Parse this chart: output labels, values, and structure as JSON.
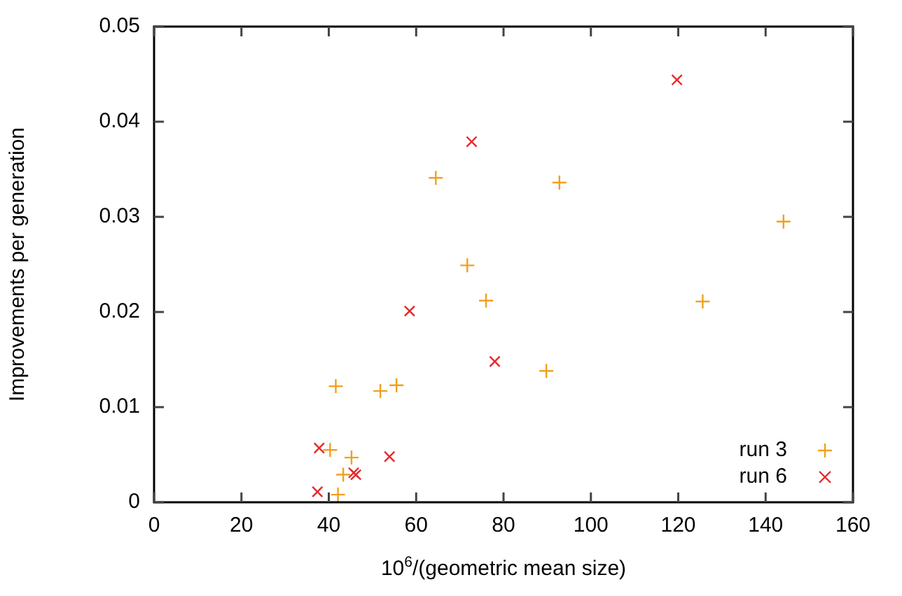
{
  "chart_data": {
    "type": "scatter",
    "xlabel": "10$^{6}$/(geometric mean size)",
    "ylabel": "Improvements per generation",
    "xlim": [
      0,
      160
    ],
    "xticks": [
      0,
      20,
      40,
      60,
      80,
      100,
      120,
      140,
      160
    ],
    "ylim": [
      0,
      0.05
    ],
    "yticks": [
      0,
      0.01,
      0.02,
      0.03,
      0.04,
      0.05
    ],
    "grid": false,
    "legend": "bottom right",
    "series": [
      {
        "name": "run 3",
        "color": "#f0a020",
        "marker": "plus",
        "x": [
          64.5,
          71.7,
          76.0,
          41.6,
          51.8,
          55.5,
          40.3,
          45.2,
          43.3,
          42.1,
          92.8,
          144.1,
          125.6,
          89.8
        ],
        "values": [
          0.0341,
          0.0249,
          0.0212,
          0.0122,
          0.0117,
          0.0123,
          0.0055,
          0.0047,
          0.0029,
          0.0008,
          0.0336,
          0.0295,
          0.0211,
          0.0138
        ]
      },
      {
        "name": "run 6",
        "color": "#e8282a",
        "marker": "cross",
        "x": [
          72.7,
          58.5,
          78.0,
          37.8,
          53.9,
          45.7,
          46.2,
          37.4,
          119.7
        ],
        "values": [
          0.0379,
          0.0201,
          0.0148,
          0.0057,
          0.0048,
          0.0031,
          0.0029,
          0.0011,
          0.0444
        ]
      }
    ]
  }
}
